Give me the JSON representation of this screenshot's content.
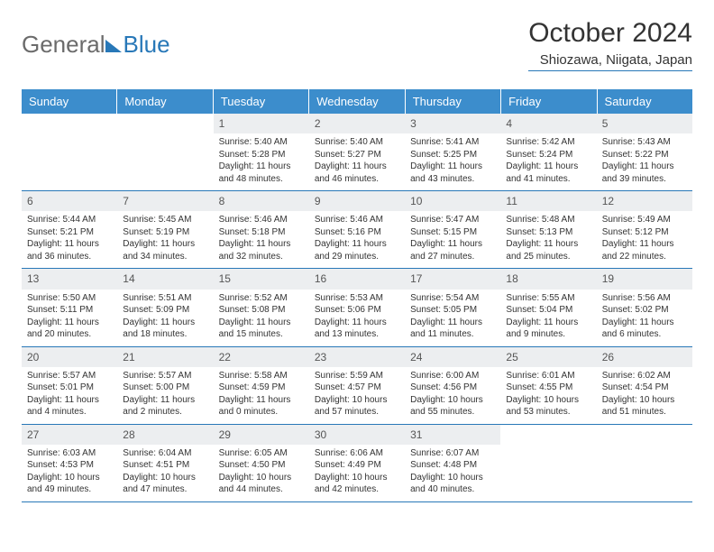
{
  "logo": {
    "text1": "General",
    "text2": "Blue"
  },
  "title": "October 2024",
  "location": "Shiozawa, Niigata, Japan",
  "colors": {
    "header_bg": "#3c8dcc",
    "border": "#2878b8",
    "daynum_bg": "#eceef0",
    "text": "#333333",
    "logo_gray": "#6b6b6b"
  },
  "day_names": [
    "Sunday",
    "Monday",
    "Tuesday",
    "Wednesday",
    "Thursday",
    "Friday",
    "Saturday"
  ],
  "weeks": [
    [
      null,
      null,
      {
        "n": "1",
        "sunrise": "5:40 AM",
        "sunset": "5:28 PM",
        "daylight": "11 hours and 48 minutes."
      },
      {
        "n": "2",
        "sunrise": "5:40 AM",
        "sunset": "5:27 PM",
        "daylight": "11 hours and 46 minutes."
      },
      {
        "n": "3",
        "sunrise": "5:41 AM",
        "sunset": "5:25 PM",
        "daylight": "11 hours and 43 minutes."
      },
      {
        "n": "4",
        "sunrise": "5:42 AM",
        "sunset": "5:24 PM",
        "daylight": "11 hours and 41 minutes."
      },
      {
        "n": "5",
        "sunrise": "5:43 AM",
        "sunset": "5:22 PM",
        "daylight": "11 hours and 39 minutes."
      }
    ],
    [
      {
        "n": "6",
        "sunrise": "5:44 AM",
        "sunset": "5:21 PM",
        "daylight": "11 hours and 36 minutes."
      },
      {
        "n": "7",
        "sunrise": "5:45 AM",
        "sunset": "5:19 PM",
        "daylight": "11 hours and 34 minutes."
      },
      {
        "n": "8",
        "sunrise": "5:46 AM",
        "sunset": "5:18 PM",
        "daylight": "11 hours and 32 minutes."
      },
      {
        "n": "9",
        "sunrise": "5:46 AM",
        "sunset": "5:16 PM",
        "daylight": "11 hours and 29 minutes."
      },
      {
        "n": "10",
        "sunrise": "5:47 AM",
        "sunset": "5:15 PM",
        "daylight": "11 hours and 27 minutes."
      },
      {
        "n": "11",
        "sunrise": "5:48 AM",
        "sunset": "5:13 PM",
        "daylight": "11 hours and 25 minutes."
      },
      {
        "n": "12",
        "sunrise": "5:49 AM",
        "sunset": "5:12 PM",
        "daylight": "11 hours and 22 minutes."
      }
    ],
    [
      {
        "n": "13",
        "sunrise": "5:50 AM",
        "sunset": "5:11 PM",
        "daylight": "11 hours and 20 minutes."
      },
      {
        "n": "14",
        "sunrise": "5:51 AM",
        "sunset": "5:09 PM",
        "daylight": "11 hours and 18 minutes."
      },
      {
        "n": "15",
        "sunrise": "5:52 AM",
        "sunset": "5:08 PM",
        "daylight": "11 hours and 15 minutes."
      },
      {
        "n": "16",
        "sunrise": "5:53 AM",
        "sunset": "5:06 PM",
        "daylight": "11 hours and 13 minutes."
      },
      {
        "n": "17",
        "sunrise": "5:54 AM",
        "sunset": "5:05 PM",
        "daylight": "11 hours and 11 minutes."
      },
      {
        "n": "18",
        "sunrise": "5:55 AM",
        "sunset": "5:04 PM",
        "daylight": "11 hours and 9 minutes."
      },
      {
        "n": "19",
        "sunrise": "5:56 AM",
        "sunset": "5:02 PM",
        "daylight": "11 hours and 6 minutes."
      }
    ],
    [
      {
        "n": "20",
        "sunrise": "5:57 AM",
        "sunset": "5:01 PM",
        "daylight": "11 hours and 4 minutes."
      },
      {
        "n": "21",
        "sunrise": "5:57 AM",
        "sunset": "5:00 PM",
        "daylight": "11 hours and 2 minutes."
      },
      {
        "n": "22",
        "sunrise": "5:58 AM",
        "sunset": "4:59 PM",
        "daylight": "11 hours and 0 minutes."
      },
      {
        "n": "23",
        "sunrise": "5:59 AM",
        "sunset": "4:57 PM",
        "daylight": "10 hours and 57 minutes."
      },
      {
        "n": "24",
        "sunrise": "6:00 AM",
        "sunset": "4:56 PM",
        "daylight": "10 hours and 55 minutes."
      },
      {
        "n": "25",
        "sunrise": "6:01 AM",
        "sunset": "4:55 PM",
        "daylight": "10 hours and 53 minutes."
      },
      {
        "n": "26",
        "sunrise": "6:02 AM",
        "sunset": "4:54 PM",
        "daylight": "10 hours and 51 minutes."
      }
    ],
    [
      {
        "n": "27",
        "sunrise": "6:03 AM",
        "sunset": "4:53 PM",
        "daylight": "10 hours and 49 minutes."
      },
      {
        "n": "28",
        "sunrise": "6:04 AM",
        "sunset": "4:51 PM",
        "daylight": "10 hours and 47 minutes."
      },
      {
        "n": "29",
        "sunrise": "6:05 AM",
        "sunset": "4:50 PM",
        "daylight": "10 hours and 44 minutes."
      },
      {
        "n": "30",
        "sunrise": "6:06 AM",
        "sunset": "4:49 PM",
        "daylight": "10 hours and 42 minutes."
      },
      {
        "n": "31",
        "sunrise": "6:07 AM",
        "sunset": "4:48 PM",
        "daylight": "10 hours and 40 minutes."
      },
      null,
      null
    ]
  ],
  "labels": {
    "sunrise_prefix": "Sunrise: ",
    "sunset_prefix": "Sunset: ",
    "daylight_prefix": "Daylight: "
  }
}
